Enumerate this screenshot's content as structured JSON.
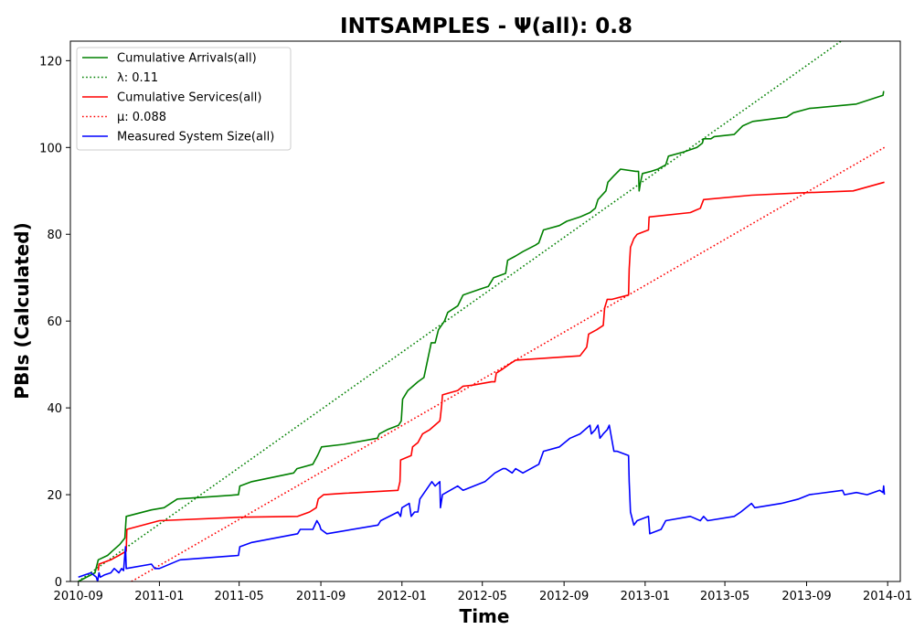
{
  "chart_data": {
    "type": "line",
    "title": "INTSAMPLES -  Ψ(all): 0.8",
    "xlabel": "Time",
    "ylabel": "PBIs (Calculated)",
    "xlim": [
      "2010-08-20",
      "2014-01-20"
    ],
    "ylim": [
      0,
      124.5
    ],
    "x_ticks": [
      "2010-09",
      "2011-01",
      "2011-05",
      "2011-09",
      "2012-01",
      "2012-05",
      "2012-09",
      "2013-01",
      "2013-05",
      "2013-09",
      "2014-01"
    ],
    "y_ticks": [
      0,
      20,
      40,
      60,
      80,
      100,
      120
    ],
    "grid": false,
    "legend_position": "top-left",
    "series": [
      {
        "name": "Cumulative Arrivals(all)",
        "color": "#008000",
        "style": "solid",
        "points": [
          [
            "2010-09-01",
            0
          ],
          [
            "2010-09-26",
            2
          ],
          [
            "2010-10-01",
            5
          ],
          [
            "2010-10-15",
            6
          ],
          [
            "2010-10-22",
            7
          ],
          [
            "2010-11-02",
            8.5
          ],
          [
            "2010-11-10",
            10
          ],
          [
            "2010-11-12",
            15
          ],
          [
            "2010-12-20",
            16.5
          ],
          [
            "2011-01-08",
            17
          ],
          [
            "2011-01-28",
            19
          ],
          [
            "2011-04-30",
            20
          ],
          [
            "2011-05-02",
            22
          ],
          [
            "2011-05-20",
            23
          ],
          [
            "2011-07-22",
            25
          ],
          [
            "2011-07-27",
            26
          ],
          [
            "2011-08-20",
            27
          ],
          [
            "2011-08-27",
            29
          ],
          [
            "2011-09-02",
            31
          ],
          [
            "2011-10-05",
            31.6
          ],
          [
            "2011-11-25",
            33
          ],
          [
            "2011-11-28",
            34
          ],
          [
            "2011-12-10",
            35
          ],
          [
            "2011-12-27",
            36
          ],
          [
            "2011-12-31",
            37
          ],
          [
            "2012-01-02",
            42
          ],
          [
            "2012-01-10",
            44
          ],
          [
            "2012-01-25",
            46
          ],
          [
            "2012-02-03",
            47
          ],
          [
            "2012-02-10",
            52
          ],
          [
            "2012-02-14",
            55
          ],
          [
            "2012-02-20",
            55
          ],
          [
            "2012-02-25",
            58
          ],
          [
            "2012-03-05",
            60
          ],
          [
            "2012-03-10",
            62
          ],
          [
            "2012-03-25",
            63.5
          ],
          [
            "2012-04-02",
            66
          ],
          [
            "2012-04-30",
            67.5
          ],
          [
            "2012-05-10",
            68
          ],
          [
            "2012-05-18",
            70
          ],
          [
            "2012-06-05",
            71
          ],
          [
            "2012-06-08",
            74
          ],
          [
            "2012-06-20",
            75
          ],
          [
            "2012-07-01",
            76
          ],
          [
            "2012-07-20",
            77.5
          ],
          [
            "2012-07-25",
            78
          ],
          [
            "2012-08-01",
            81
          ],
          [
            "2012-08-25",
            82
          ],
          [
            "2012-09-05",
            83
          ],
          [
            "2012-09-25",
            84
          ],
          [
            "2012-10-10",
            85
          ],
          [
            "2012-10-18",
            86
          ],
          [
            "2012-10-22",
            88
          ],
          [
            "2012-11-03",
            90
          ],
          [
            "2012-11-06",
            92
          ],
          [
            "2012-11-15",
            93.5
          ],
          [
            "2012-11-25",
            95
          ],
          [
            "2012-12-18",
            94.5
          ],
          [
            "2012-12-22",
            94.5
          ],
          [
            "2012-12-23",
            90
          ],
          [
            "2012-12-25",
            92
          ],
          [
            "2012-12-28",
            94
          ],
          [
            "2013-01-10",
            94.5
          ],
          [
            "2013-01-20",
            95
          ],
          [
            "2013-02-01",
            96
          ],
          [
            "2013-02-05",
            98
          ],
          [
            "2013-03-01",
            99
          ],
          [
            "2013-03-20",
            100
          ],
          [
            "2013-03-28",
            101
          ],
          [
            "2013-03-30",
            102
          ],
          [
            "2013-04-10",
            102
          ],
          [
            "2013-04-15",
            102.5
          ],
          [
            "2013-05-15",
            103
          ],
          [
            "2013-05-28",
            105
          ],
          [
            "2013-06-12",
            106
          ],
          [
            "2013-08-02",
            107
          ],
          [
            "2013-08-12",
            108
          ],
          [
            "2013-09-05",
            109
          ],
          [
            "2013-11-15",
            110
          ],
          [
            "2013-12-25",
            112
          ],
          [
            "2013-12-26",
            113
          ]
        ]
      },
      {
        "name": "λ: 0.11",
        "color": "#008000",
        "style": "dotted",
        "points": [
          [
            "2010-09-01",
            0
          ],
          [
            "2013-12-31",
            132
          ]
        ]
      },
      {
        "name": "Cumulative Services(all)",
        "color": "#ff0000",
        "style": "solid",
        "points": [
          [
            "2010-10-01",
            2.5
          ],
          [
            "2010-10-02",
            4
          ],
          [
            "2010-10-20",
            5
          ],
          [
            "2010-11-01",
            6
          ],
          [
            "2010-11-12",
            7
          ],
          [
            "2010-11-13",
            12
          ],
          [
            "2011-01-01",
            14
          ],
          [
            "2011-05-02",
            14.8
          ],
          [
            "2011-07-28",
            15
          ],
          [
            "2011-08-15",
            16
          ],
          [
            "2011-08-25",
            17
          ],
          [
            "2011-08-28",
            19
          ],
          [
            "2011-09-05",
            20
          ],
          [
            "2011-10-05",
            20.3
          ],
          [
            "2011-12-26",
            21
          ],
          [
            "2011-12-29",
            23
          ],
          [
            "2011-12-30",
            28
          ],
          [
            "2012-01-15",
            29
          ],
          [
            "2012-01-17",
            31
          ],
          [
            "2012-01-25",
            32
          ],
          [
            "2012-02-01",
            34
          ],
          [
            "2012-02-12",
            35
          ],
          [
            "2012-02-27",
            37
          ],
          [
            "2012-02-28",
            38
          ],
          [
            "2012-03-01",
            41
          ],
          [
            "2012-03-02",
            43
          ],
          [
            "2012-03-25",
            44
          ],
          [
            "2012-04-02",
            45
          ],
          [
            "2012-04-15",
            45.2
          ],
          [
            "2012-05-15",
            46
          ],
          [
            "2012-05-20",
            46
          ],
          [
            "2012-05-22",
            48
          ],
          [
            "2012-06-01",
            49
          ],
          [
            "2012-06-10",
            50
          ],
          [
            "2012-06-20",
            51
          ],
          [
            "2012-09-25",
            52
          ],
          [
            "2012-10-05",
            54
          ],
          [
            "2012-10-08",
            57
          ],
          [
            "2012-10-20",
            58
          ],
          [
            "2012-10-30",
            59
          ],
          [
            "2012-11-01",
            63
          ],
          [
            "2012-11-05",
            65
          ],
          [
            "2012-11-12",
            65
          ],
          [
            "2012-12-07",
            66
          ],
          [
            "2012-12-08",
            72
          ],
          [
            "2012-12-10",
            77
          ],
          [
            "2012-12-15",
            79
          ],
          [
            "2012-12-20",
            80
          ],
          [
            "2013-01-06",
            81
          ],
          [
            "2013-01-07",
            84
          ],
          [
            "2013-03-10",
            85
          ],
          [
            "2013-03-25",
            86
          ],
          [
            "2013-03-30",
            88
          ],
          [
            "2013-06-10",
            89
          ],
          [
            "2013-08-20",
            89.5
          ],
          [
            "2013-11-10",
            90
          ],
          [
            "2013-12-27",
            92
          ]
        ]
      },
      {
        "name": "μ: 0.088",
        "color": "#ff0000",
        "style": "dotted",
        "points": [
          [
            "2010-11-20",
            0
          ],
          [
            "2013-12-27",
            100
          ]
        ]
      },
      {
        "name": "Measured System Size(all)",
        "color": "#0000ff",
        "style": "solid",
        "points": [
          [
            "2010-09-01",
            1
          ],
          [
            "2010-09-20",
            2
          ],
          [
            "2010-09-28",
            1
          ],
          [
            "2010-09-30",
            0
          ],
          [
            "2010-10-02",
            2
          ],
          [
            "2010-10-04",
            1
          ],
          [
            "2010-10-10",
            1.5
          ],
          [
            "2010-10-20",
            2
          ],
          [
            "2010-10-25",
            3
          ],
          [
            "2010-11-01",
            2
          ],
          [
            "2010-11-05",
            3
          ],
          [
            "2010-11-08",
            2.5
          ],
          [
            "2010-11-11",
            8
          ],
          [
            "2010-11-12",
            3
          ],
          [
            "2010-12-20",
            4
          ],
          [
            "2010-12-25",
            3
          ],
          [
            "2011-01-01",
            3
          ],
          [
            "2011-02-01",
            5
          ],
          [
            "2011-04-30",
            6
          ],
          [
            "2011-05-02",
            8
          ],
          [
            "2011-05-20",
            9
          ],
          [
            "2011-07-28",
            11
          ],
          [
            "2011-08-01",
            12
          ],
          [
            "2011-08-20",
            12
          ],
          [
            "2011-08-26",
            14
          ],
          [
            "2011-08-30",
            13
          ],
          [
            "2011-09-01",
            12
          ],
          [
            "2011-09-10",
            11
          ],
          [
            "2011-11-26",
            13
          ],
          [
            "2011-11-30",
            14
          ],
          [
            "2011-12-26",
            16
          ],
          [
            "2011-12-30",
            15
          ],
          [
            "2012-01-01",
            17
          ],
          [
            "2012-01-12",
            18
          ],
          [
            "2012-01-15",
            15
          ],
          [
            "2012-01-20",
            16
          ],
          [
            "2012-01-25",
            16
          ],
          [
            "2012-01-28",
            19
          ],
          [
            "2012-02-15",
            23
          ],
          [
            "2012-02-20",
            22
          ],
          [
            "2012-02-27",
            23
          ],
          [
            "2012-02-28",
            17
          ],
          [
            "2012-03-02",
            20
          ],
          [
            "2012-03-25",
            22
          ],
          [
            "2012-04-02",
            21
          ],
          [
            "2012-05-05",
            23
          ],
          [
            "2012-05-20",
            25
          ],
          [
            "2012-06-01",
            26
          ],
          [
            "2012-06-05",
            26
          ],
          [
            "2012-06-15",
            25
          ],
          [
            "2012-06-20",
            26
          ],
          [
            "2012-07-01",
            25
          ],
          [
            "2012-07-25",
            27
          ],
          [
            "2012-08-01",
            30
          ],
          [
            "2012-08-25",
            31
          ],
          [
            "2012-09-10",
            33
          ],
          [
            "2012-09-25",
            34
          ],
          [
            "2012-10-10",
            36
          ],
          [
            "2012-10-12",
            34
          ],
          [
            "2012-10-18",
            35
          ],
          [
            "2012-10-22",
            36
          ],
          [
            "2012-10-25",
            33
          ],
          [
            "2012-10-30",
            34
          ],
          [
            "2012-11-05",
            35
          ],
          [
            "2012-11-08",
            36
          ],
          [
            "2012-11-15",
            30
          ],
          [
            "2012-11-20",
            30
          ],
          [
            "2012-12-07",
            29
          ],
          [
            "2012-12-08",
            23
          ],
          [
            "2012-12-10",
            16
          ],
          [
            "2012-12-15",
            13
          ],
          [
            "2012-12-20",
            14
          ],
          [
            "2013-01-06",
            15
          ],
          [
            "2013-01-08",
            11
          ],
          [
            "2013-01-25",
            12
          ],
          [
            "2013-02-01",
            14
          ],
          [
            "2013-03-10",
            15
          ],
          [
            "2013-03-25",
            14
          ],
          [
            "2013-03-30",
            15
          ],
          [
            "2013-04-05",
            14
          ],
          [
            "2013-05-15",
            15
          ],
          [
            "2013-05-25",
            16
          ],
          [
            "2013-06-10",
            18
          ],
          [
            "2013-06-15",
            17
          ],
          [
            "2013-07-25",
            18
          ],
          [
            "2013-08-20",
            19
          ],
          [
            "2013-09-05",
            20
          ],
          [
            "2013-10-25",
            21
          ],
          [
            "2013-10-28",
            20
          ],
          [
            "2013-11-15",
            20.5
          ],
          [
            "2013-12-01",
            20
          ],
          [
            "2013-12-20",
            21
          ],
          [
            "2013-12-25",
            20.5
          ],
          [
            "2013-12-26",
            22
          ],
          [
            "2013-12-27",
            20
          ]
        ]
      }
    ]
  }
}
